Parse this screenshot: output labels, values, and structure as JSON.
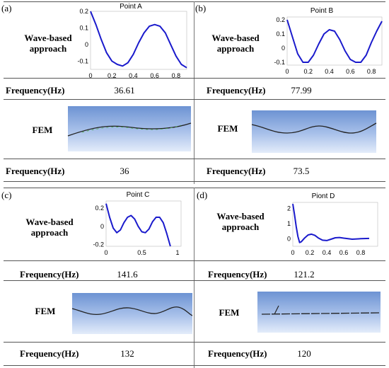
{
  "panels": [
    {
      "letter": "(a)",
      "plot_title": "Point A",
      "wave_label_1": "Wave-based",
      "wave_label_2": "approach",
      "freq_label": "Frequency(Hz)",
      "wave_freq": "36.61",
      "fem_label": "FEM",
      "fem_freq": "36"
    },
    {
      "letter": "(b)",
      "plot_title": "Point B",
      "wave_label_1": "Wave-based",
      "wave_label_2": "approach",
      "freq_label": "Frequency(Hz)",
      "wave_freq": "77.99",
      "fem_label": "FEM",
      "fem_freq": "73.5"
    },
    {
      "letter": "(c)",
      "plot_title": "Point C",
      "wave_label_1": "Wave-based",
      "wave_label_2": "approach",
      "freq_label": "Frequency(Hz)",
      "wave_freq": "141.6",
      "fem_label": "FEM",
      "fem_freq": "132"
    },
    {
      "letter": "(d)",
      "plot_title": "Piont D",
      "wave_label_1": "Wave-based",
      "wave_label_2": "approach",
      "freq_label": "Frequency(Hz)",
      "wave_freq": "121.2",
      "fem_label": "FEM",
      "fem_freq": "120"
    }
  ],
  "chart_data": [
    {
      "type": "line",
      "title": "Point A",
      "xlim": [
        0,
        0.9
      ],
      "ylim": [
        -0.15,
        0.2
      ],
      "xticks": [
        "0",
        "0.2",
        "0.4",
        "0.6",
        "0.8"
      ],
      "yticks": [
        "0.2",
        "0.1",
        "0",
        "-0.1"
      ],
      "x": [
        0,
        0.05,
        0.1,
        0.15,
        0.2,
        0.25,
        0.3,
        0.35,
        0.4,
        0.45,
        0.5,
        0.55,
        0.6,
        0.65,
        0.7,
        0.75,
        0.8,
        0.85,
        0.9
      ],
      "y": [
        0.2,
        0.12,
        0.03,
        -0.05,
        -0.1,
        -0.12,
        -0.13,
        -0.11,
        -0.06,
        0.01,
        0.07,
        0.11,
        0.12,
        0.11,
        0.07,
        0.0,
        -0.07,
        -0.12,
        -0.14
      ],
      "color": "#1a1acc"
    },
    {
      "type": "line",
      "title": "Point B",
      "xlim": [
        0,
        0.9
      ],
      "ylim": [
        -0.12,
        0.22
      ],
      "xticks": [
        "0",
        "0.2",
        "0.4",
        "0.6",
        "0.8"
      ],
      "yticks": [
        "0.2",
        "0.1",
        "0",
        "-0.1"
      ],
      "x": [
        0,
        0.05,
        0.1,
        0.15,
        0.2,
        0.25,
        0.3,
        0.35,
        0.4,
        0.45,
        0.5,
        0.55,
        0.6,
        0.65,
        0.7,
        0.75,
        0.8,
        0.85,
        0.9
      ],
      "y": [
        0.2,
        0.08,
        -0.04,
        -0.1,
        -0.1,
        -0.05,
        0.03,
        0.1,
        0.13,
        0.12,
        0.06,
        -0.02,
        -0.08,
        -0.1,
        -0.1,
        -0.05,
        0.04,
        0.12,
        0.19
      ],
      "color": "#1a1acc"
    },
    {
      "type": "line",
      "title": "Point C",
      "xlim": [
        0,
        1.05
      ],
      "ylim": [
        -0.22,
        0.28
      ],
      "xticks": [
        "0",
        "0.5",
        "1"
      ],
      "yticks": [
        "0.2",
        "0",
        "-0.2"
      ],
      "x": [
        0,
        0.05,
        0.1,
        0.15,
        0.2,
        0.25,
        0.3,
        0.35,
        0.4,
        0.45,
        0.5,
        0.55,
        0.6,
        0.65,
        0.7,
        0.75,
        0.8,
        0.85,
        0.9
      ],
      "y": [
        0.25,
        0.1,
        -0.02,
        -0.07,
        -0.04,
        0.04,
        0.1,
        0.12,
        0.08,
        0.0,
        -0.06,
        -0.07,
        -0.03,
        0.05,
        0.1,
        0.1,
        0.04,
        -0.08,
        -0.22
      ],
      "color": "#1a1acc"
    },
    {
      "type": "line",
      "title": "Piont D",
      "xlim": [
        0,
        1.0
      ],
      "ylim": [
        -0.5,
        2.4
      ],
      "xticks": [
        "0",
        "0.2",
        "0.4",
        "0.6",
        "0.8"
      ],
      "yticks": [
        "2",
        "1",
        "0"
      ],
      "x": [
        0,
        0.02,
        0.04,
        0.06,
        0.08,
        0.1,
        0.14,
        0.18,
        0.22,
        0.26,
        0.3,
        0.35,
        0.4,
        0.45,
        0.5,
        0.55,
        0.6,
        0.7,
        0.8,
        0.9
      ],
      "y": [
        2.3,
        1.6,
        0.8,
        0.15,
        -0.25,
        -0.2,
        0.05,
        0.25,
        0.3,
        0.22,
        0.05,
        -0.1,
        -0.12,
        -0.03,
        0.06,
        0.08,
        0.04,
        -0.03,
        0.0,
        0.02
      ],
      "color": "#1a1acc"
    }
  ]
}
